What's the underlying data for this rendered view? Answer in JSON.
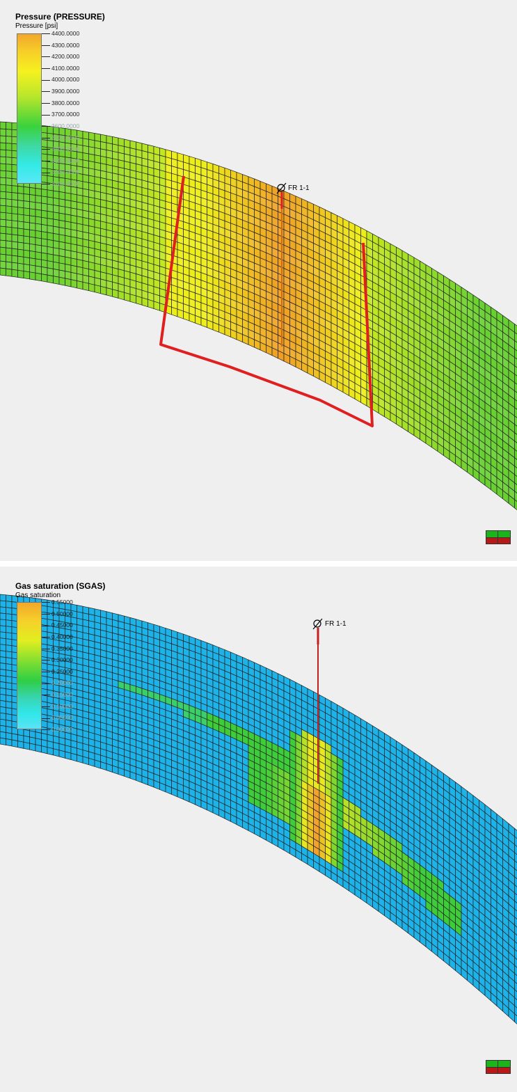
{
  "panels": [
    {
      "title": "Pressure (PRESSURE)",
      "subtitle": "Pressure [psi]",
      "ticks": [
        "4400.0000",
        "4300.0000",
        "4200.0000",
        "4100.0000",
        "4000.0000",
        "3900.0000",
        "3800.0000",
        "3700.0000",
        "3600.0000",
        "3500.0000",
        "3400.0000",
        "3300.0000",
        "3200.0000",
        "3100.0000"
      ],
      "well": {
        "label": "FR 1-1"
      },
      "colors": {
        "grid": "#222222",
        "fault": "#e02020",
        "well": "#e02020"
      }
    },
    {
      "title": "Gas saturation (SGAS)",
      "subtitle": "Gas saturation",
      "ticks": [
        "0.55000",
        "0.50000",
        "0.45000",
        "0.40000",
        "0.35000",
        "0.30000",
        "0.25000",
        "0.20000",
        "0.15000",
        "0.10000",
        "0.05000",
        "0.00000"
      ],
      "well": {
        "label": "FR 1-1"
      },
      "colors": {
        "grid": "#222222",
        "background_cells": "#1eb3e8",
        "plume_outline": "#d8f6ff",
        "well": "#c81e1e"
      }
    }
  ],
  "axis_icon": {
    "name": "view-axis-icon"
  }
}
